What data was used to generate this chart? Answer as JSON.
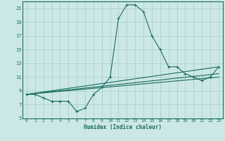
{
  "xlabel": "Humidex (Indice chaleur)",
  "background_color": "#cce8e6",
  "grid_color": "#aacfcd",
  "line_color": "#1a6b60",
  "xlim": [
    -0.5,
    23.5
  ],
  "ylim": [
    5,
    22
  ],
  "xticks": [
    0,
    1,
    2,
    3,
    4,
    5,
    6,
    7,
    8,
    9,
    10,
    11,
    12,
    13,
    14,
    15,
    16,
    17,
    18,
    19,
    20,
    21,
    22,
    23
  ],
  "yticks": [
    5,
    7,
    9,
    11,
    13,
    15,
    17,
    19,
    21
  ],
  "curve1_x": [
    0,
    1,
    2,
    3,
    4,
    5,
    6,
    7,
    8,
    9,
    10,
    11,
    12,
    13,
    14,
    15,
    16,
    17,
    18,
    19,
    20,
    21,
    22,
    23
  ],
  "curve1_y": [
    8.5,
    8.5,
    8.0,
    7.5,
    7.5,
    7.5,
    6.0,
    6.5,
    8.5,
    9.5,
    11.0,
    19.5,
    21.5,
    21.5,
    20.5,
    17.0,
    15.0,
    12.5,
    12.5,
    11.5,
    11.0,
    10.5,
    11.0,
    12.5
  ],
  "line2_x0": 0,
  "line2_y0": 8.5,
  "line2_x1": 23,
  "line2_y1": 12.5,
  "line3_x0": 0,
  "line3_y0": 8.5,
  "line3_x1": 23,
  "line3_y1": 11.5,
  "line4_x0": 0,
  "line4_y0": 8.5,
  "line4_x1": 23,
  "line4_y1": 11.0
}
